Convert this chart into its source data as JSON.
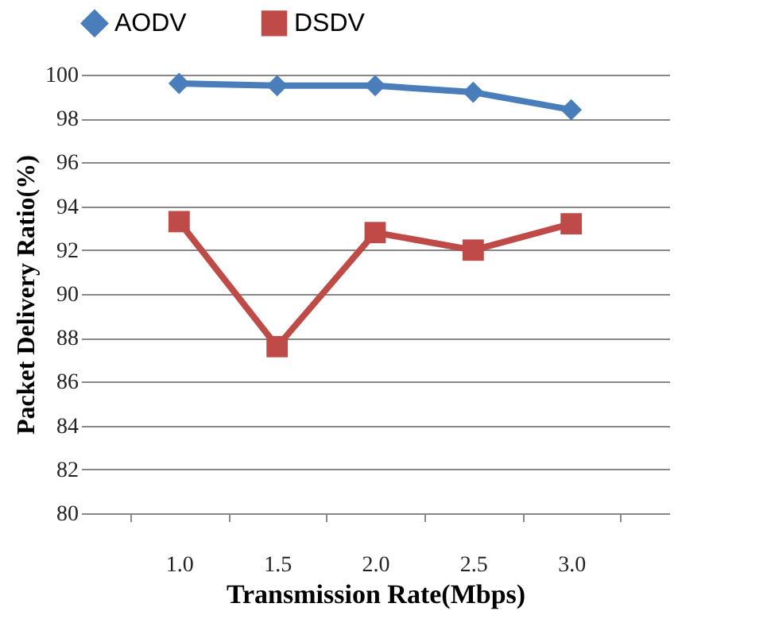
{
  "chart_data": {
    "type": "line",
    "xlabel": "Transmission Rate(Mbps)",
    "ylabel": "Packet Delivery Ratio(%)",
    "categories": [
      "1.0",
      "1.5",
      "2.0",
      "2.5",
      "3.0"
    ],
    "series": [
      {
        "name": "AODV",
        "color": "#4a7ebb",
        "marker": "diamond",
        "values": [
          99.6,
          99.5,
          99.5,
          99.2,
          98.4
        ]
      },
      {
        "name": "DSDV",
        "color": "#be4b48",
        "marker": "square",
        "values": [
          93.3,
          87.6,
          92.8,
          92.0,
          93.2
        ]
      }
    ],
    "ylim": [
      80,
      100
    ],
    "yticks": [
      80,
      82,
      84,
      86,
      88,
      90,
      92,
      94,
      96,
      98,
      100
    ],
    "grid": "y",
    "legend": "top"
  }
}
